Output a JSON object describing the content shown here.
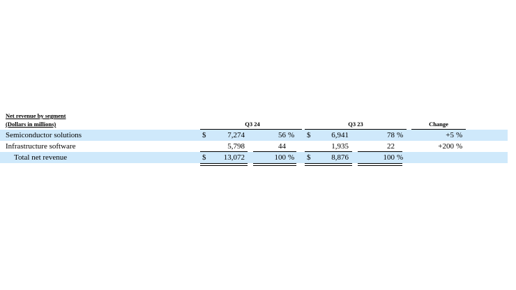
{
  "table": {
    "title": "Net revenue by segment",
    "subtitle": "(Dollars in millions)",
    "headers": [
      "Q3 24",
      "Q3 23",
      "Change"
    ],
    "rows": [
      {
        "label": "Semiconductor solutions",
        "cells": [
          "$",
          "7,274",
          "56",
          "%",
          "$",
          "6,941",
          "78",
          "%",
          "+5",
          "%"
        ]
      },
      {
        "label": "Infrastructure software",
        "cells": [
          null,
          "5,798",
          "44",
          null,
          null,
          "1,935",
          "22",
          null,
          "+200",
          "%"
        ]
      },
      {
        "label": "Total net revenue",
        "cells": [
          "$",
          "13,072",
          "100",
          "%",
          "$",
          "8,876",
          "100",
          "%",
          null,
          null
        ]
      }
    ]
  }
}
